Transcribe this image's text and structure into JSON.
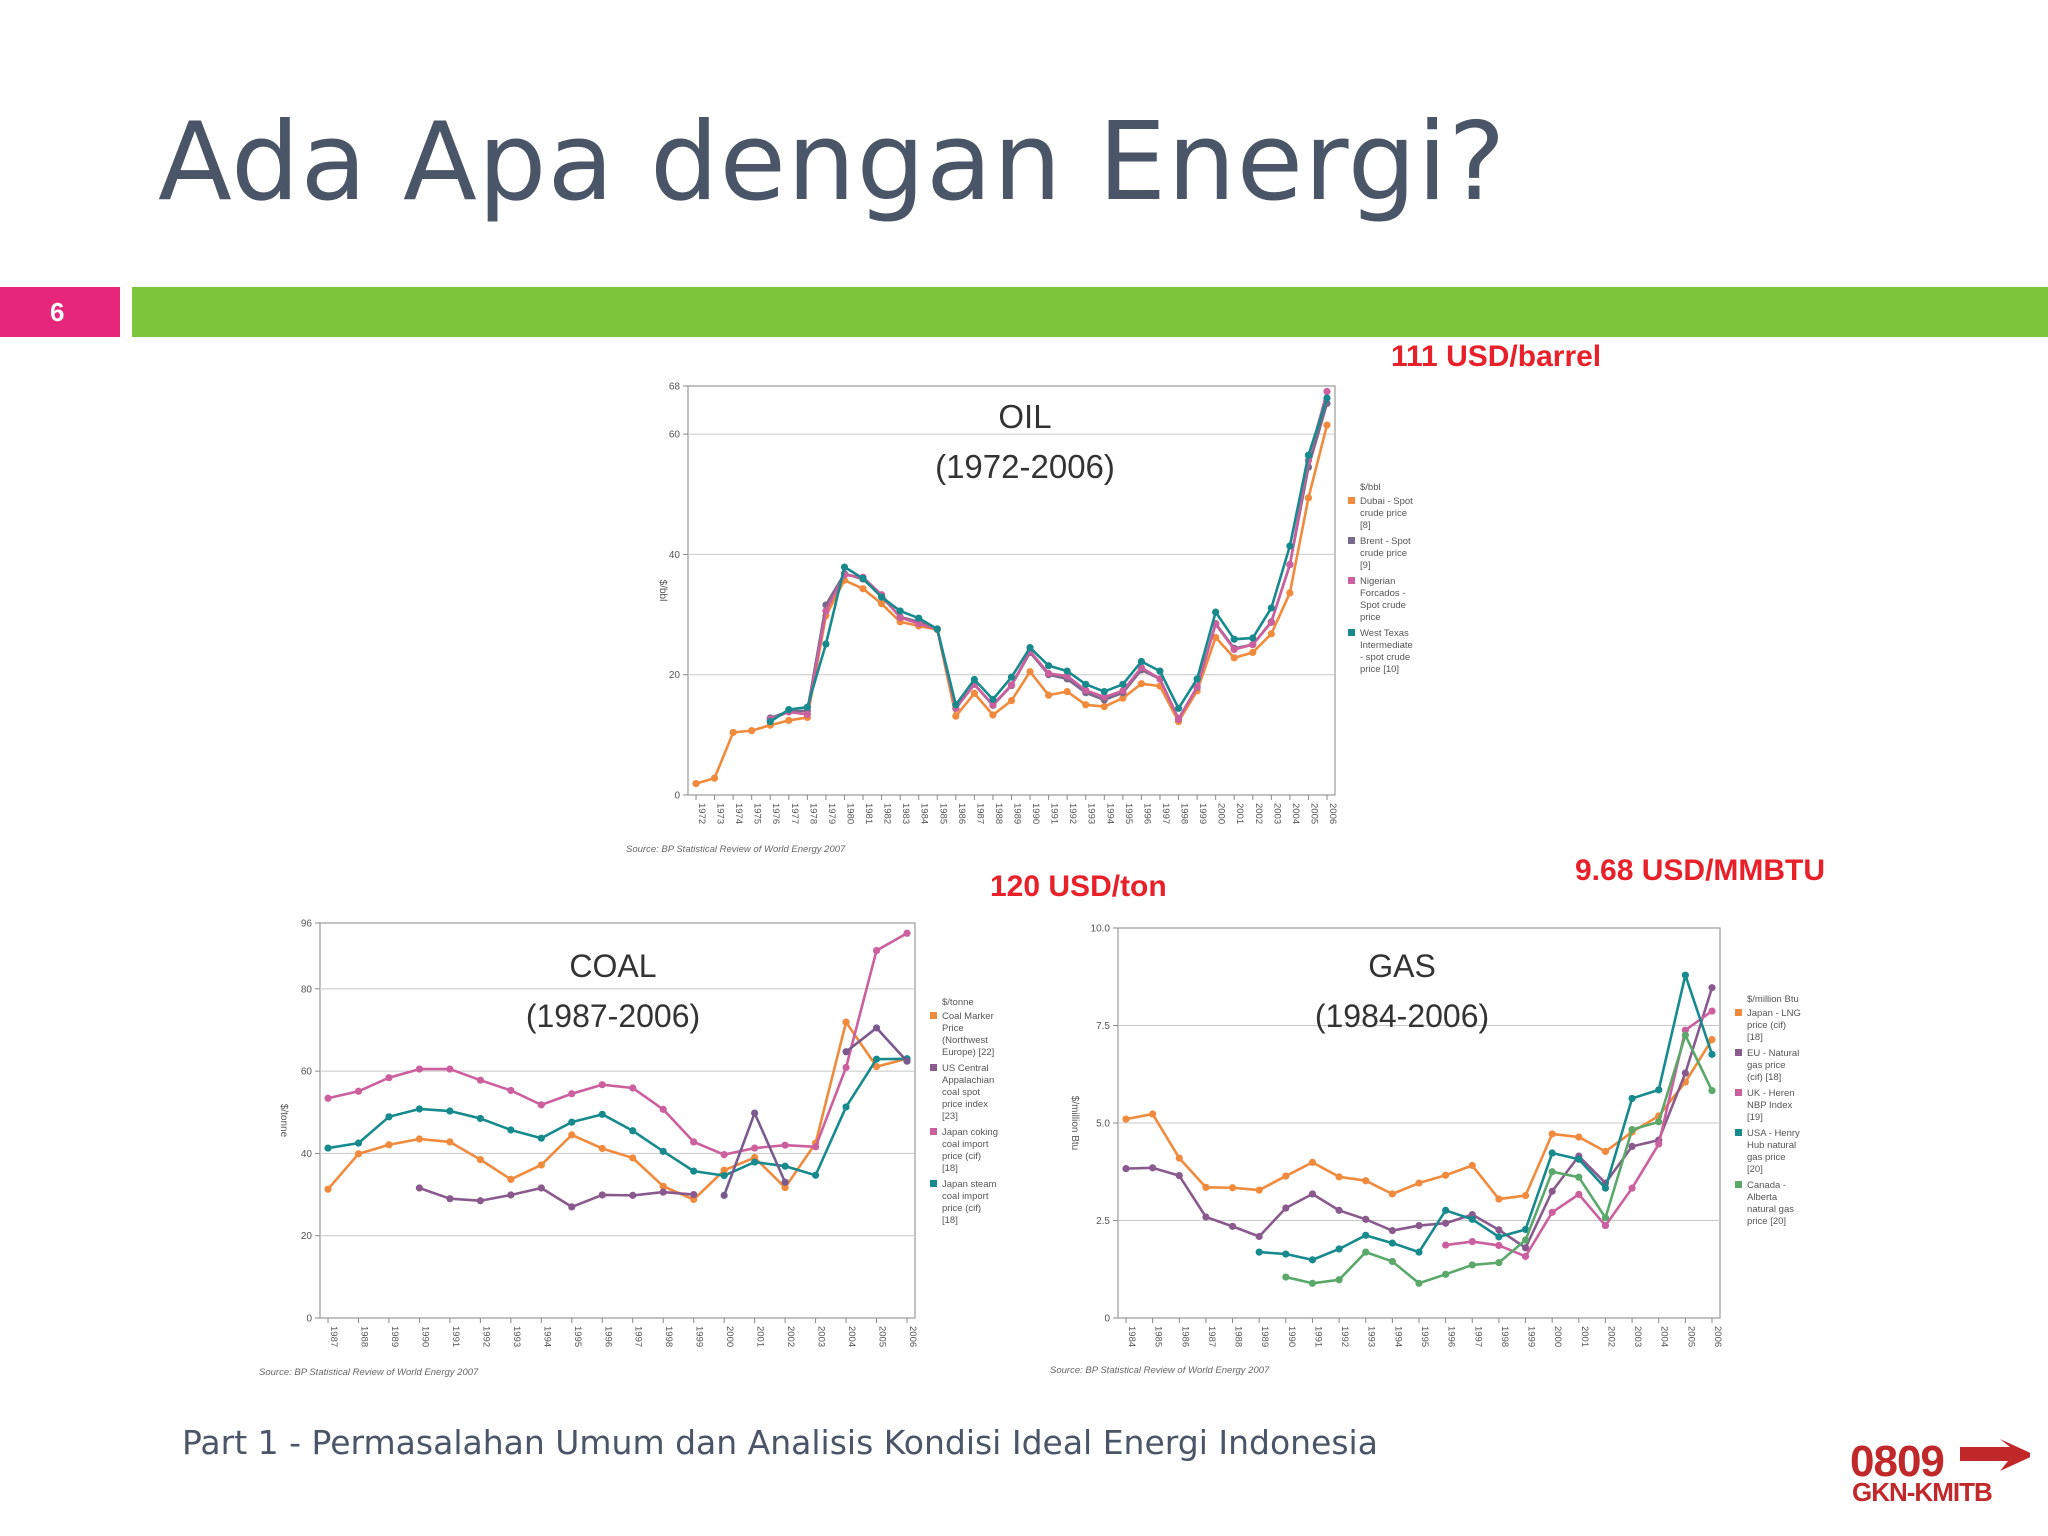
{
  "slide": {
    "title": "Ada Apa dengan Energi?",
    "page_number": "6",
    "footer": "Part 1 - Permasalahan Umum dan Analisis Kondisi Ideal Energi Indonesia",
    "logo_number": "0809",
    "logo_text": "GKN-KMITB"
  },
  "callouts": {
    "oil": "111 USD/barrel",
    "coal": "120 USD/ton",
    "gas": "9.68 USD/MMBTU"
  },
  "colors": {
    "accent_bar": "#7dc63c",
    "page_badge": "#e6267a",
    "callout": "#e8202a"
  },
  "chart_data": [
    {
      "id": "oil",
      "type": "line",
      "title": "OIL",
      "subtitle": "(1972-2006)",
      "ylabel": "$/bbl",
      "ylim": [
        0,
        68
      ],
      "yticks": [
        0,
        20,
        40,
        60,
        68
      ],
      "source": "Source: BP Statistical Review of World Energy 2007",
      "legend_header": "$/bbl",
      "legend_position": "right",
      "x": [
        "1972",
        "1973",
        "1974",
        "1975",
        "1976",
        "1977",
        "1978",
        "1979",
        "1980",
        "1981",
        "1982",
        "1983",
        "1984",
        "1985",
        "1986",
        "1987",
        "1988",
        "1989",
        "1990",
        "1991",
        "1992",
        "1993",
        "1994",
        "1995",
        "1996",
        "1997",
        "1998",
        "1999",
        "2000",
        "2001",
        "2002",
        "2003",
        "2004",
        "2005",
        "2006"
      ],
      "series": [
        {
          "name": "Dubai - Spot crude price [8]",
          "color": "#f08a3c",
          "values": [
            1.9,
            2.8,
            10.4,
            10.7,
            11.6,
            12.4,
            12.9,
            29.8,
            35.7,
            34.3,
            31.8,
            28.8,
            28.1,
            27.5,
            13.1,
            16.9,
            13.3,
            15.7,
            20.5,
            16.6,
            17.2,
            15.0,
            14.7,
            16.1,
            18.5,
            18.1,
            12.2,
            17.3,
            26.2,
            22.8,
            23.7,
            26.8,
            33.6,
            49.4,
            61.5
          ]
        },
        {
          "name": "Brent - Spot crude price [9]",
          "color": "#7a6a8a",
          "values": [
            null,
            null,
            null,
            null,
            12.8,
            13.9,
            14.0,
            31.6,
            36.8,
            35.9,
            33.0,
            29.6,
            28.8,
            27.6,
            14.4,
            18.4,
            14.9,
            18.2,
            23.7,
            20.0,
            19.3,
            17.0,
            15.8,
            17.0,
            20.8,
            19.3,
            12.7,
            17.9,
            28.5,
            24.4,
            25.0,
            28.8,
            38.3,
            54.5,
            65.1
          ]
        },
        {
          "name": "Nigerian Forcados - Spot crude price",
          "color": "#cc5f9e",
          "values": [
            null,
            null,
            null,
            null,
            12.6,
            13.8,
            13.4,
            30.6,
            36.6,
            36.2,
            33.3,
            29.5,
            28.5,
            27.6,
            14.4,
            18.4,
            15.0,
            18.3,
            23.9,
            20.2,
            19.8,
            17.4,
            16.3,
            17.3,
            21.2,
            19.3,
            12.6,
            18.0,
            28.4,
            24.2,
            25.0,
            28.7,
            38.3,
            55.6,
            67.1
          ]
        },
        {
          "name": "West Texas Intermediate - spot crude price [10]",
          "color": "#178a8e",
          "values": [
            null,
            null,
            null,
            null,
            12.2,
            14.2,
            14.6,
            25.1,
            37.9,
            36.0,
            32.9,
            30.6,
            29.4,
            27.6,
            15.0,
            19.2,
            15.9,
            19.6,
            24.5,
            21.5,
            20.6,
            18.4,
            17.2,
            18.4,
            22.2,
            20.6,
            14.4,
            19.3,
            30.4,
            25.9,
            26.1,
            31.1,
            41.4,
            56.5,
            66.0
          ]
        }
      ]
    },
    {
      "id": "coal",
      "type": "line",
      "title": "COAL",
      "subtitle": "(1987-2006)",
      "ylabel": "$/tonne",
      "ylim": [
        0,
        96
      ],
      "yticks": [
        0,
        20,
        40,
        60,
        80,
        96
      ],
      "source": "Source: BP Statistical Review of World Energy 2007",
      "legend_header": "$/tonne",
      "legend_position": "right",
      "x": [
        "1987",
        "1988",
        "1989",
        "1990",
        "1991",
        "1992",
        "1993",
        "1994",
        "1995",
        "1996",
        "1997",
        "1998",
        "1999",
        "2000",
        "2001",
        "2002",
        "2003",
        "2004",
        "2005",
        "2006"
      ],
      "series": [
        {
          "name": "Coal Marker Price (Northwest Europe) [22]",
          "color": "#f08a3c",
          "values": [
            31.3,
            39.9,
            42.1,
            43.5,
            42.8,
            38.5,
            33.7,
            37.2,
            44.5,
            41.2,
            38.9,
            32.0,
            28.8,
            35.9,
            39.0,
            31.7,
            42.5,
            71.9,
            61.1,
            63.0
          ]
        },
        {
          "name": "US Central Appalachian coal spot price index [23]",
          "color": "#8a5a8e",
          "values": [
            null,
            null,
            null,
            31.6,
            29.0,
            28.5,
            29.9,
            31.6,
            27.0,
            29.9,
            29.8,
            30.6,
            30.0,
            null,
            null,
            null,
            null,
            null,
            null,
            null
          ]
        },
        {
          "name": "Japan coking coal import price (cif) [18]",
          "color": "#cc5f9e",
          "values": [
            53.4,
            55.1,
            58.4,
            60.5,
            60.5,
            57.8,
            55.3,
            51.8,
            54.5,
            56.7,
            55.9,
            50.7,
            42.8,
            39.7,
            41.3,
            42.0,
            41.6,
            60.9,
            89.3,
            93.5
          ]
        },
        {
          "name": "Japan steam coal import price (cif) [18]",
          "color": "#178a8e",
          "values": [
            41.3,
            42.5,
            48.9,
            50.8,
            50.3,
            48.5,
            45.7,
            43.7,
            47.6,
            49.5,
            45.5,
            40.5,
            35.7,
            34.6,
            37.9,
            36.9,
            34.7,
            51.3,
            62.9,
            63.0
          ]
        },
        {
          "name": "",
          "color": "#7a5a8e",
          "values": [
            null,
            null,
            null,
            null,
            null,
            null,
            null,
            null,
            null,
            null,
            null,
            null,
            null,
            29.8,
            49.8,
            33.0,
            null,
            64.7,
            70.5,
            62.4
          ]
        }
      ]
    },
    {
      "id": "gas",
      "type": "line",
      "title": "GAS",
      "subtitle": "(1984-2006)",
      "ylabel": "$/million Btu",
      "ylim": [
        0,
        10
      ],
      "yticks": [
        0,
        2.5,
        5.0,
        7.5,
        10.0
      ],
      "ytick_labels": [
        "0",
        "2.5",
        "5.0",
        "7.5",
        "10.0"
      ],
      "source": "Source: BP Statistical Review of World Energy 2007",
      "legend_header": "$/million Btu",
      "legend_position": "right",
      "x": [
        "1984",
        "1985",
        "1986",
        "1987",
        "1988",
        "1989",
        "1990",
        "1991",
        "1992",
        "1993",
        "1994",
        "1995",
        "1996",
        "1997",
        "1998",
        "1999",
        "2000",
        "2001",
        "2002",
        "2003",
        "2004",
        "2005",
        "2006"
      ],
      "series": [
        {
          "name": "Japan - LNG price (cif) [18]",
          "color": "#f08a3c",
          "values": [
            5.1,
            5.23,
            4.1,
            3.35,
            3.34,
            3.28,
            3.64,
            3.99,
            3.62,
            3.52,
            3.18,
            3.46,
            3.66,
            3.91,
            3.05,
            3.14,
            4.72,
            4.64,
            4.27,
            4.77,
            5.18,
            6.05,
            7.14
          ]
        },
        {
          "name": "EU - Natural gas price (cif) [18]",
          "color": "#8a5a8e",
          "values": [
            3.83,
            3.85,
            3.65,
            2.59,
            2.35,
            2.09,
            2.82,
            3.18,
            2.76,
            2.53,
            2.24,
            2.37,
            2.43,
            2.65,
            2.26,
            1.8,
            3.25,
            4.15,
            3.46,
            4.4,
            4.56,
            6.28,
            8.47
          ]
        },
        {
          "name": "UK - Heren NBP Index [19]",
          "color": "#cc5f9e",
          "values": [
            null,
            null,
            null,
            null,
            null,
            null,
            null,
            null,
            null,
            null,
            null,
            null,
            1.87,
            1.96,
            1.86,
            1.58,
            2.71,
            3.17,
            2.37,
            3.33,
            4.46,
            7.38,
            7.87
          ]
        },
        {
          "name": "USA - Henry Hub natural gas price [20]",
          "color": "#178a8e",
          "values": [
            null,
            null,
            null,
            null,
            null,
            1.69,
            1.64,
            1.49,
            1.77,
            2.12,
            1.92,
            1.69,
            2.76,
            2.53,
            2.08,
            2.27,
            4.23,
            4.07,
            3.33,
            5.63,
            5.85,
            8.79,
            6.76
          ]
        },
        {
          "name": "Canada - Alberta natural gas price [20]",
          "color": "#5aa86a",
          "values": [
            null,
            null,
            null,
            null,
            null,
            null,
            1.05,
            0.89,
            0.98,
            1.69,
            1.45,
            0.89,
            1.12,
            1.36,
            1.42,
            2.0,
            3.75,
            3.61,
            2.57,
            4.83,
            5.03,
            7.25,
            5.83
          ]
        }
      ]
    }
  ]
}
